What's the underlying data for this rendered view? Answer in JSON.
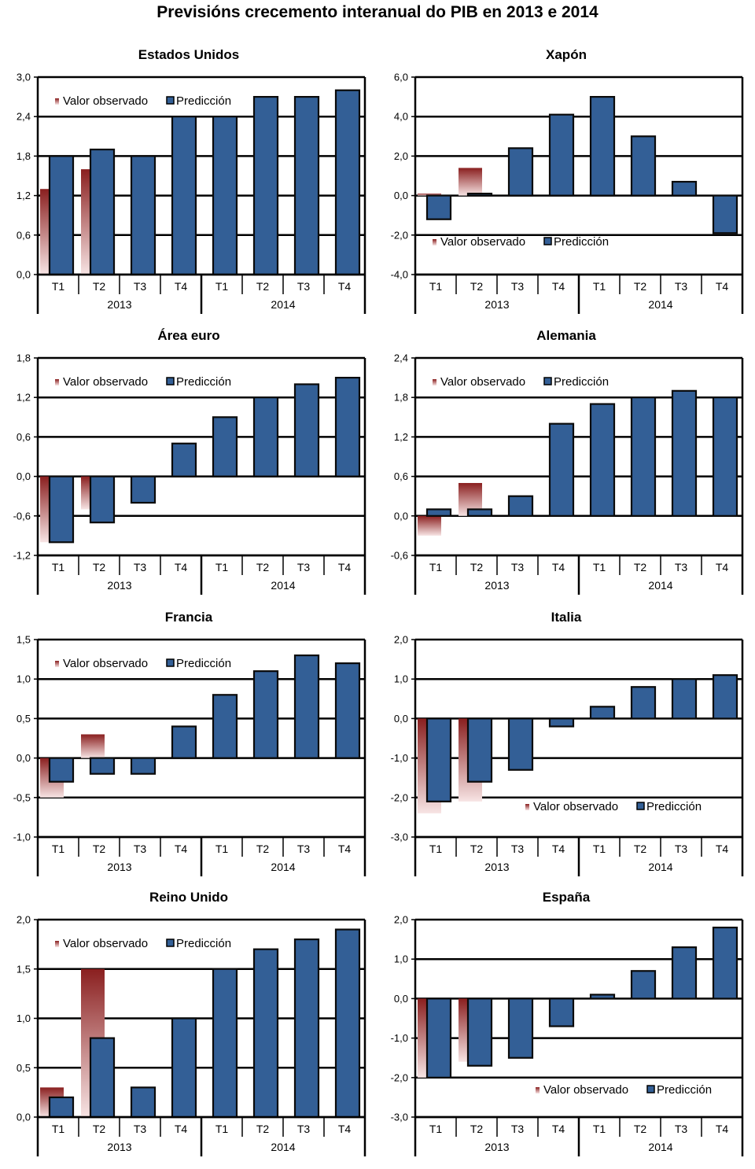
{
  "title": "Previsións crecemento interanual do PIB en 2013 e 2014",
  "legend": {
    "observed": "Valor observado",
    "forecast": "Predicción"
  },
  "colors": {
    "forecast_fill": "#335f96",
    "forecast_stroke": "#0a0a0a",
    "observed_dark": "#8a1f1f",
    "observed_light": "#f7e4e4",
    "grid": "#000000"
  },
  "categories": [
    "T1",
    "T2",
    "T3",
    "T4",
    "T1",
    "T2",
    "T3",
    "T4"
  ],
  "years": [
    "2013",
    "2014"
  ],
  "chart_data": [
    {
      "type": "bar",
      "title": "Estados Unidos",
      "ylim": [
        0,
        3.0
      ],
      "yticks": [
        "0,0",
        "0,6",
        "1,2",
        "1,8",
        "2,4",
        "3,0"
      ],
      "legend_position": "top-left",
      "series": [
        {
          "name": "Valor observado",
          "values": [
            1.3,
            1.6,
            null,
            null,
            null,
            null,
            null,
            null
          ]
        },
        {
          "name": "Predicción",
          "values": [
            1.8,
            1.9,
            1.8,
            2.4,
            2.4,
            2.7,
            2.7,
            2.8
          ]
        }
      ]
    },
    {
      "type": "bar",
      "title": "Xapón",
      "ylim": [
        -4.0,
        6.0
      ],
      "yticks": [
        "-4,0",
        "-2,0",
        "0,0",
        "2,0",
        "4,0",
        "6,0"
      ],
      "legend_position": "lower-left",
      "series": [
        {
          "name": "Valor observado",
          "values": [
            0.1,
            1.4,
            null,
            null,
            null,
            null,
            null,
            null
          ]
        },
        {
          "name": "Predicción",
          "values": [
            -1.2,
            0.1,
            2.4,
            4.1,
            5.0,
            3.0,
            0.7,
            -1.9
          ]
        }
      ]
    },
    {
      "type": "bar",
      "title": "Área euro",
      "ylim": [
        -1.2,
        1.8
      ],
      "yticks": [
        "-1,2",
        "-0,6",
        "0,0",
        "0,6",
        "1,2",
        "1,8"
      ],
      "legend_position": "top-left",
      "series": [
        {
          "name": "Valor observado",
          "values": [
            -1.0,
            -0.5,
            null,
            null,
            null,
            null,
            null,
            null
          ]
        },
        {
          "name": "Predicción",
          "values": [
            -1.0,
            -0.7,
            -0.4,
            0.5,
            0.9,
            1.2,
            1.4,
            1.5
          ]
        }
      ]
    },
    {
      "type": "bar",
      "title": "Alemania",
      "ylim": [
        -0.6,
        2.4
      ],
      "yticks": [
        "-0,6",
        "0,0",
        "0,6",
        "1,2",
        "1,8",
        "2,4"
      ],
      "legend_position": "top-left",
      "series": [
        {
          "name": "Valor observado",
          "values": [
            -0.3,
            0.5,
            null,
            null,
            null,
            null,
            null,
            null
          ]
        },
        {
          "name": "Predicción",
          "values": [
            0.1,
            0.1,
            0.3,
            1.4,
            1.7,
            1.8,
            1.9,
            1.8
          ]
        }
      ]
    },
    {
      "type": "bar",
      "title": "Francia",
      "ylim": [
        -1.0,
        1.5
      ],
      "yticks": [
        "-1,0",
        "-0,5",
        "0,0",
        "0,5",
        "1,0",
        "1,5"
      ],
      "legend_position": "top-left",
      "series": [
        {
          "name": "Valor observado",
          "values": [
            -0.5,
            0.3,
            null,
            null,
            null,
            null,
            null,
            null
          ]
        },
        {
          "name": "Predicción",
          "values": [
            -0.3,
            -0.2,
            -0.2,
            0.4,
            0.8,
            1.1,
            1.3,
            1.2
          ]
        }
      ]
    },
    {
      "type": "bar",
      "title": "Italia",
      "ylim": [
        -3.0,
        2.0
      ],
      "yticks": [
        "-3,0",
        "-2,0",
        "-1,0",
        "0,0",
        "1,0",
        "2,0"
      ],
      "legend_position": "lower-right",
      "series": [
        {
          "name": "Valor observado",
          "values": [
            -2.4,
            -2.1,
            null,
            null,
            null,
            null,
            null,
            null
          ]
        },
        {
          "name": "Predicción",
          "values": [
            -2.1,
            -1.6,
            -1.3,
            -0.2,
            0.3,
            0.8,
            1.0,
            1.1
          ]
        }
      ]
    },
    {
      "type": "bar",
      "title": "Reino Unido",
      "ylim": [
        0.0,
        2.0
      ],
      "yticks": [
        "0,0",
        "0,5",
        "1,0",
        "1,5",
        "2,0"
      ],
      "legend_position": "top-left",
      "series": [
        {
          "name": "Valor observado",
          "values": [
            0.3,
            1.5,
            null,
            null,
            null,
            null,
            null,
            null
          ]
        },
        {
          "name": "Predicción",
          "values": [
            0.2,
            0.8,
            0.3,
            1.0,
            1.5,
            1.7,
            1.8,
            1.9
          ]
        }
      ]
    },
    {
      "type": "bar",
      "title": "España",
      "ylim": [
        -3.0,
        2.0
      ],
      "yticks": [
        "-3,0",
        "-2,0",
        "-1,0",
        "0,0",
        "1,0",
        "2,0"
      ],
      "legend_position": "lower-right",
      "series": [
        {
          "name": "Valor observado",
          "values": [
            -2.0,
            -1.6,
            null,
            null,
            null,
            null,
            null,
            null
          ]
        },
        {
          "name": "Predicción",
          "values": [
            -2.0,
            -1.7,
            -1.5,
            -0.7,
            0.1,
            0.7,
            1.3,
            1.8
          ]
        }
      ]
    }
  ]
}
